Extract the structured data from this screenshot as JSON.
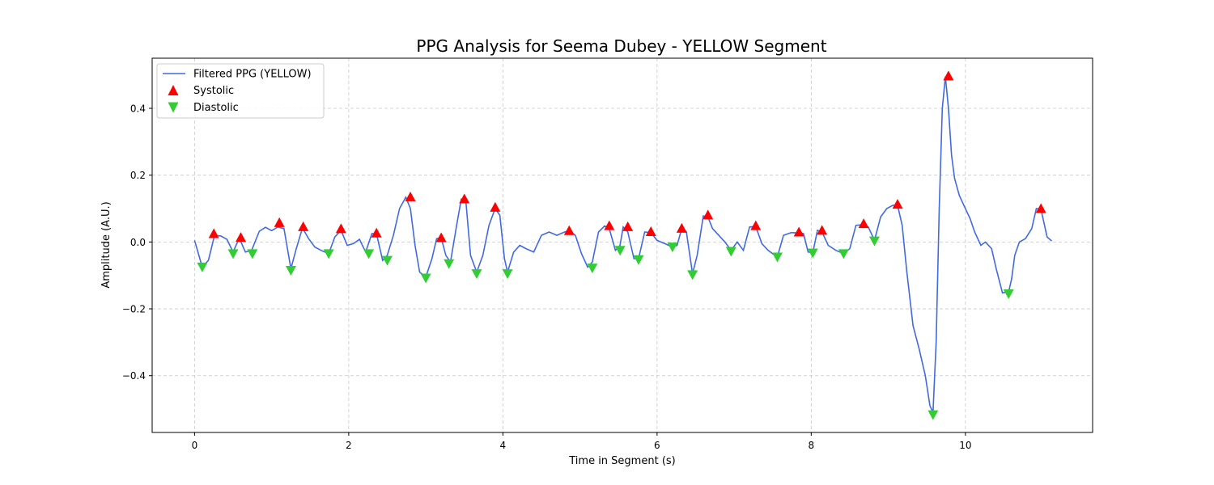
{
  "chart_data": {
    "type": "line",
    "title": "PPG Analysis for Seema Dubey - YELLOW Segment",
    "xlabel": "Time in Segment (s)",
    "ylabel": "Amplitude (A.U.)",
    "xlim": [
      -0.55,
      11.65
    ],
    "ylim": [
      -0.57,
      0.55
    ],
    "xticks": [
      0,
      2,
      4,
      6,
      8,
      10
    ],
    "yticks": [
      -0.4,
      -0.2,
      0.0,
      0.2,
      0.4
    ],
    "xtick_labels": [
      "0",
      "2",
      "4",
      "6",
      "8",
      "10"
    ],
    "ytick_labels": [
      "−0.4",
      "−0.2",
      "0.0",
      "0.2",
      "0.4"
    ],
    "grid": true,
    "legend_position": "top-left",
    "series": [
      {
        "name": "Filtered PPG (YELLOW)",
        "kind": "line",
        "color": "#4169E1",
        "x": [
          0.0,
          0.1,
          0.18,
          0.26,
          0.34,
          0.42,
          0.5,
          0.58,
          0.66,
          0.74,
          0.84,
          0.92,
          1.0,
          1.08,
          1.16,
          1.25,
          1.32,
          1.4,
          1.48,
          1.56,
          1.64,
          1.74,
          1.82,
          1.9,
          1.98,
          2.06,
          2.14,
          2.22,
          2.3,
          2.36,
          2.44,
          2.5,
          2.58,
          2.66,
          2.74,
          2.8,
          2.86,
          2.92,
          3.0,
          3.08,
          3.14,
          3.2,
          3.26,
          3.32,
          3.4,
          3.46,
          3.52,
          3.58,
          3.66,
          3.74,
          3.82,
          3.9,
          3.96,
          4.02,
          4.06,
          4.14,
          4.22,
          4.3,
          4.4,
          4.5,
          4.6,
          4.7,
          4.8,
          4.86,
          4.94,
          5.02,
          5.1,
          5.16,
          5.24,
          5.32,
          5.38,
          5.46,
          5.52,
          5.56,
          5.62,
          5.7,
          5.76,
          5.84,
          5.92,
          6.0,
          6.1,
          6.2,
          6.26,
          6.32,
          6.38,
          6.46,
          6.52,
          6.6,
          6.66,
          6.72,
          6.8,
          6.88,
          6.96,
          7.04,
          7.12,
          7.2,
          7.28,
          7.36,
          7.44,
          7.56,
          7.64,
          7.74,
          7.84,
          7.9,
          7.96,
          8.02,
          8.08,
          8.14,
          8.22,
          8.32,
          8.42,
          8.5,
          8.58,
          8.68,
          8.74,
          8.82,
          8.9,
          8.98,
          9.06,
          9.12,
          9.18,
          9.24,
          9.32,
          9.4,
          9.48,
          9.54,
          9.58,
          9.62,
          9.66,
          9.7,
          9.74,
          9.78,
          9.82,
          9.86,
          9.92,
          9.98,
          10.06,
          10.12,
          10.2,
          10.26,
          10.34,
          10.4,
          10.48,
          10.56,
          10.6,
          10.64,
          10.7,
          10.78,
          10.86,
          10.92,
          10.98,
          11.06,
          11.12
        ],
        "y": [
          0.005,
          -0.075,
          -0.055,
          0.02,
          0.018,
          0.008,
          -0.03,
          0.012,
          -0.03,
          -0.025,
          0.032,
          0.044,
          0.034,
          0.045,
          0.04,
          -0.08,
          -0.02,
          0.042,
          0.01,
          -0.015,
          -0.025,
          -0.035,
          0.015,
          0.035,
          -0.01,
          -0.005,
          0.008,
          -0.03,
          0.025,
          0.024,
          -0.055,
          -0.04,
          0.02,
          0.1,
          0.134,
          0.1,
          -0.01,
          -0.09,
          -0.105,
          -0.05,
          0.01,
          0.012,
          -0.04,
          -0.06,
          0.05,
          0.128,
          0.12,
          -0.04,
          -0.09,
          -0.04,
          0.05,
          0.1,
          0.08,
          -0.05,
          -0.09,
          -0.03,
          -0.01,
          -0.02,
          -0.03,
          0.02,
          0.03,
          0.02,
          0.03,
          0.033,
          0.02,
          -0.035,
          -0.075,
          -0.06,
          0.03,
          0.048,
          0.04,
          -0.025,
          -0.01,
          0.045,
          0.03,
          -0.05,
          -0.05,
          0.03,
          0.028,
          0.005,
          -0.005,
          -0.015,
          -0.01,
          0.04,
          0.03,
          -0.095,
          -0.04,
          0.078,
          0.075,
          0.04,
          0.02,
          0.0,
          -0.025,
          0.0,
          -0.025,
          0.045,
          0.046,
          -0.005,
          -0.025,
          -0.045,
          0.02,
          0.028,
          0.027,
          0.025,
          -0.03,
          -0.032,
          0.035,
          0.03,
          -0.01,
          -0.025,
          -0.035,
          -0.02,
          0.05,
          0.052,
          0.045,
          0.005,
          0.075,
          0.1,
          0.11,
          0.11,
          0.05,
          -0.09,
          -0.25,
          -0.32,
          -0.4,
          -0.49,
          -0.51,
          -0.3,
          0.1,
          0.4,
          0.495,
          0.4,
          0.26,
          0.19,
          0.14,
          0.11,
          0.07,
          0.03,
          -0.01,
          0.0,
          -0.02,
          -0.08,
          -0.152,
          -0.15,
          -0.11,
          -0.04,
          0.0,
          0.01,
          0.04,
          0.1,
          0.098,
          0.015,
          0.003
        ]
      },
      {
        "name": "Systolic",
        "kind": "scatter",
        "marker": "triangle-up",
        "color": "#FF0000",
        "x": [
          0.25,
          0.6,
          1.1,
          1.41,
          1.9,
          2.36,
          2.8,
          3.2,
          3.5,
          3.9,
          4.86,
          5.38,
          5.62,
          5.92,
          6.32,
          6.66,
          7.28,
          7.84,
          8.14,
          8.68,
          9.12,
          9.78,
          10.98
        ],
        "y": [
          0.025,
          0.014,
          0.058,
          0.046,
          0.04,
          0.027,
          0.135,
          0.013,
          0.129,
          0.104,
          0.034,
          0.049,
          0.046,
          0.031,
          0.041,
          0.081,
          0.049,
          0.03,
          0.035,
          0.055,
          0.113,
          0.497,
          0.1
        ]
      },
      {
        "name": "Diastolic",
        "kind": "scatter",
        "marker": "triangle-down",
        "color": "#32CD32",
        "x": [
          0.1,
          0.5,
          0.75,
          1.25,
          1.74,
          2.26,
          2.5,
          3.0,
          3.3,
          3.66,
          4.06,
          5.16,
          5.52,
          5.76,
          6.2,
          6.46,
          6.96,
          7.56,
          8.02,
          8.42,
          8.82,
          9.58,
          10.56
        ],
        "y": [
          -0.075,
          -0.035,
          -0.035,
          -0.085,
          -0.035,
          -0.035,
          -0.055,
          -0.108,
          -0.065,
          -0.095,
          -0.095,
          -0.078,
          -0.025,
          -0.053,
          -0.015,
          -0.098,
          -0.028,
          -0.045,
          -0.033,
          -0.035,
          0.003,
          -0.517,
          -0.155
        ]
      }
    ]
  }
}
